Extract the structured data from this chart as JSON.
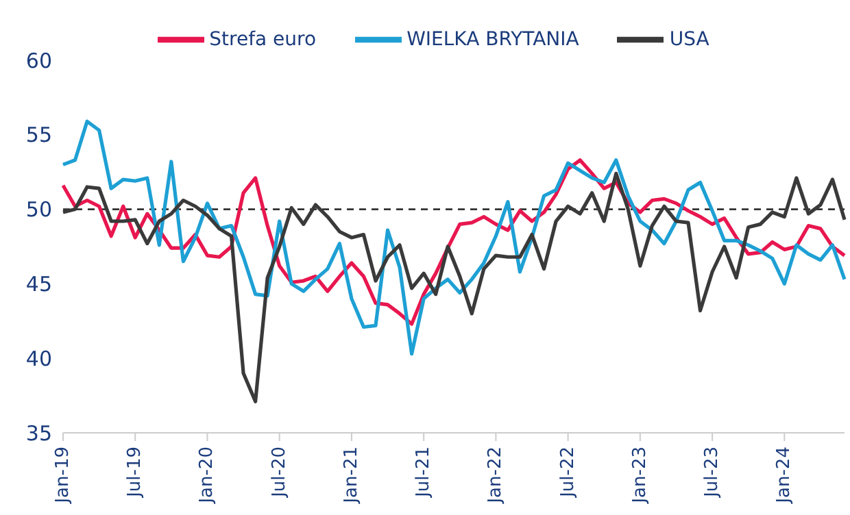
{
  "chart_data": {
    "type": "line",
    "categories": [
      "Jan-19",
      null,
      null,
      null,
      null,
      null,
      "Jul-19",
      null,
      null,
      null,
      null,
      null,
      "Jan-20",
      null,
      null,
      null,
      null,
      null,
      "Jul-20",
      null,
      null,
      null,
      null,
      null,
      "Jan-21",
      null,
      null,
      null,
      null,
      null,
      "Jul-21",
      null,
      null,
      null,
      null,
      null,
      "Jan-22",
      null,
      null,
      null,
      null,
      null,
      "Jul-22",
      null,
      null,
      null,
      null,
      null,
      "Jan-23",
      null,
      null,
      null,
      null,
      null,
      "Jul-23",
      null,
      null,
      null,
      null,
      null,
      "Jan-24",
      null,
      null,
      null,
      null,
      null
    ],
    "series": [
      {
        "name": "Strefa euro",
        "color": "#e8174f",
        "values": [
          51.6,
          50.2,
          50.6,
          50.2,
          48.2,
          50.2,
          48.1,
          49.7,
          48.6,
          47.4,
          47.4,
          48.3,
          46.9,
          46.8,
          47.5,
          51.1,
          52.1,
          48.9,
          46.2,
          45.1,
          45.2,
          45.5,
          44.5,
          45.5,
          46.4,
          45.5,
          43.7,
          43.6,
          43.0,
          42.3,
          44.3,
          45.7,
          47.4,
          49.0,
          49.1,
          49.5,
          49.0,
          48.6,
          49.9,
          49.2,
          49.8,
          51.0,
          52.7,
          53.3,
          52.4,
          51.4,
          51.8,
          50.4,
          49.8,
          50.6,
          50.7,
          50.4,
          49.9,
          49.5,
          49.0,
          49.4,
          48.1,
          47.0,
          47.1,
          47.8,
          47.3,
          47.5,
          48.9,
          48.7,
          47.5,
          46.9
        ]
      },
      {
        "name": "WIELKA BRYTANIA",
        "color": "#1ea0d4",
        "values": [
          53.0,
          53.3,
          55.9,
          55.3,
          51.4,
          52.0,
          51.9,
          52.1,
          47.6,
          53.2,
          46.5,
          48.1,
          50.4,
          48.7,
          48.9,
          46.8,
          44.3,
          44.2,
          49.2,
          45.0,
          44.5,
          45.3,
          46.0,
          47.7,
          44.0,
          42.1,
          42.2,
          48.6,
          46.1,
          40.3,
          44.0,
          44.7,
          45.3,
          44.4,
          45.3,
          46.4,
          48.2,
          50.5,
          45.8,
          48.1,
          50.9,
          51.3,
          53.1,
          52.6,
          52.1,
          51.8,
          53.3,
          50.9,
          49.2,
          48.6,
          47.7,
          49.2,
          51.3,
          51.8,
          49.9,
          47.9,
          47.9,
          47.6,
          47.2,
          46.7,
          45.0,
          47.6,
          47.0,
          46.6,
          47.6,
          45.3
        ]
      },
      {
        "name": "USA",
        "color": "#3a3a3a",
        "values": [
          49.8,
          50.0,
          51.5,
          51.4,
          49.2,
          49.2,
          49.3,
          47.7,
          49.2,
          49.7,
          50.6,
          50.2,
          49.6,
          48.7,
          48.2,
          39.0,
          37.1,
          45.4,
          47.5,
          50.1,
          49.0,
          50.3,
          49.5,
          48.5,
          48.1,
          48.3,
          45.2,
          46.8,
          47.6,
          44.7,
          45.7,
          44.3,
          47.5,
          45.5,
          43.0,
          46.0,
          46.9,
          46.8,
          46.8,
          48.3,
          46.0,
          49.2,
          50.2,
          49.7,
          51.1,
          49.2,
          52.4,
          50.0,
          46.2,
          48.9,
          50.2,
          49.2,
          49.1,
          43.2,
          45.8,
          47.5,
          45.4,
          48.8,
          49.0,
          49.8,
          49.5,
          52.1,
          49.7,
          50.3,
          52.0,
          49.3
        ]
      }
    ],
    "ylim": [
      35,
      60
    ],
    "yticks": [
      35,
      40,
      45,
      50,
      55,
      60
    ],
    "ref_lines": [
      {
        "axis": "y",
        "value": 50,
        "color": "#333333",
        "line_style": "dashed"
      }
    ],
    "legend": "top",
    "grid": false,
    "marker": "none",
    "line_style": "solid"
  }
}
